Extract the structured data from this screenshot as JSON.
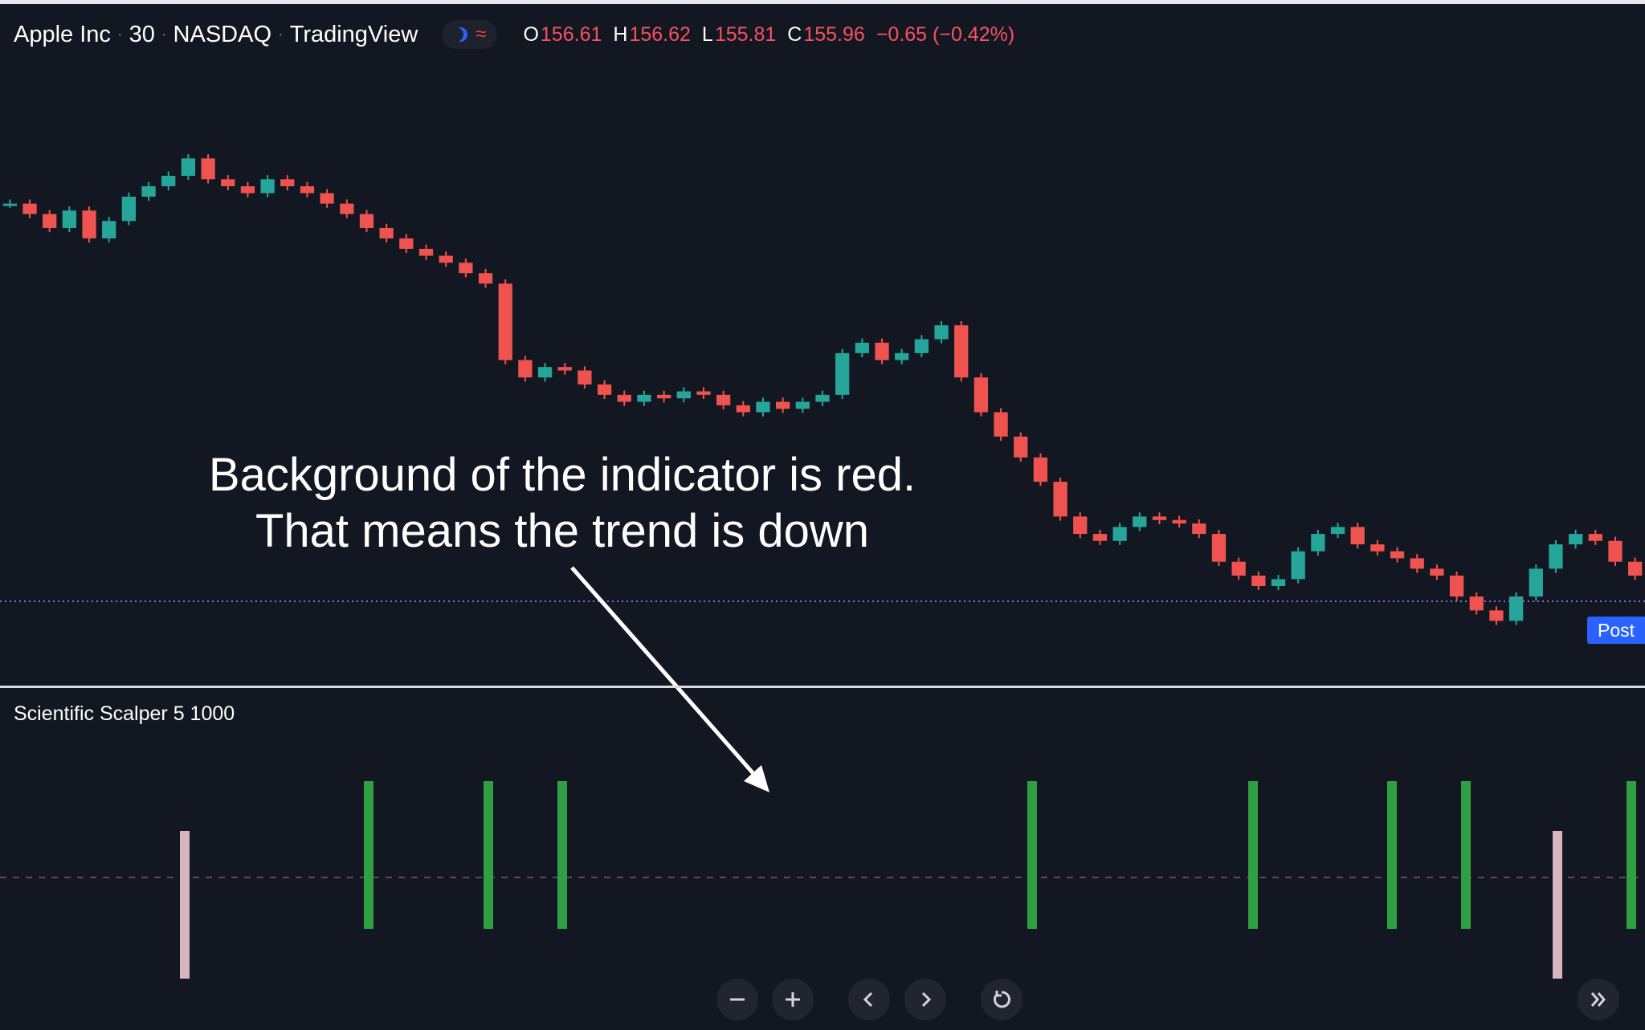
{
  "header": {
    "symbol": "Apple Inc",
    "interval": "30",
    "exchange": "NASDAQ",
    "source": "TradingView",
    "ohlc": {
      "o_label": "O",
      "o": "156.61",
      "h_label": "H",
      "h": "156.62",
      "l_label": "L",
      "l": "155.81",
      "c_label": "C",
      "c": "155.96",
      "change": "−0.65 (−0.42%)"
    }
  },
  "indicator": {
    "title": "Scientific Scalper 5 1000"
  },
  "annotation": {
    "line1": "Background of the indicator is red.",
    "line2": "That means the trend is down"
  },
  "price_axis": {
    "post_label": "Post"
  },
  "toolbar": {
    "zoom_out_icon": "minus-icon",
    "zoom_in_icon": "plus-icon",
    "scroll_left_icon": "chevron-left-icon",
    "scroll_right_icon": "chevron-right-icon",
    "reset_icon": "reset-icon",
    "scroll_to_end_icon": "double-chevron-right-icon"
  },
  "colors": {
    "background": "#131722",
    "bull": "#26a69a",
    "bear": "#ef5350",
    "indicator_bg": "#2a161f",
    "signal_green": "#2ea043",
    "signal_pink": "#d8b4c0",
    "post_badge": "#2962ff"
  },
  "chart_data": [
    {
      "type": "candlestick",
      "title": "",
      "note": "Trend shape estimated from the visual; price axis not shown",
      "close_path": [
        156.95,
        156.92,
        156.88,
        156.93,
        156.85,
        156.9,
        156.97,
        157.0,
        157.03,
        157.08,
        157.02,
        157.0,
        156.98,
        157.02,
        157.0,
        156.98,
        156.95,
        156.92,
        156.88,
        156.85,
        156.82,
        156.8,
        156.78,
        156.75,
        156.72,
        156.5,
        156.45,
        156.48,
        156.47,
        156.43,
        156.4,
        156.38,
        156.4,
        156.39,
        156.41,
        156.4,
        156.37,
        156.35,
        156.38,
        156.36,
        156.38,
        156.4,
        156.52,
        156.55,
        156.5,
        156.52,
        156.56,
        156.6,
        156.45,
        156.35,
        156.28,
        156.22,
        156.15,
        156.05,
        156.0,
        155.98,
        156.02,
        156.05,
        156.04,
        156.03,
        156.0,
        155.92,
        155.88,
        155.85,
        155.87,
        155.95,
        156.0,
        156.02,
        155.97,
        155.95,
        155.93,
        155.9,
        155.88,
        155.82,
        155.78,
        155.75,
        155.82,
        155.9,
        155.97,
        156.0,
        155.98,
        155.92,
        155.88
      ]
    },
    {
      "type": "bar",
      "title": "Scientific Scalper 5 1000",
      "note": "Signal markers: green = above zero line, pink = below zero line",
      "signals": [
        {
          "index": 0,
          "sign": -1
        },
        {
          "index": 1,
          "sign": 1
        },
        {
          "index": 2,
          "sign": 1
        },
        {
          "index": 3,
          "sign": 1
        },
        {
          "index": 4,
          "sign": 1
        },
        {
          "index": 5,
          "sign": 1
        },
        {
          "index": 6,
          "sign": 1
        },
        {
          "index": 7,
          "sign": 1
        },
        {
          "index": 8,
          "sign": -1
        },
        {
          "index": 9,
          "sign": 1
        }
      ]
    }
  ]
}
